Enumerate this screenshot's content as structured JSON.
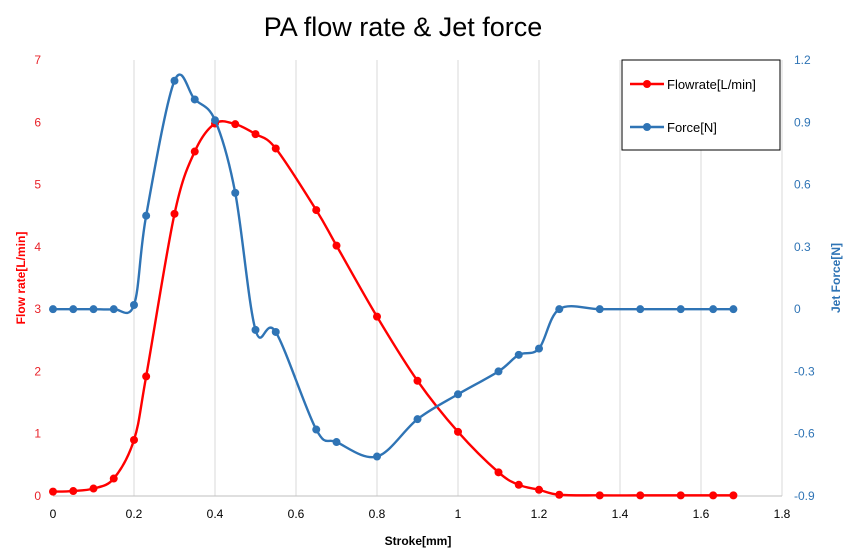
{
  "chart_data": {
    "type": "line",
    "title": "PA flow rate & Jet force",
    "xlabel": "Stroke[mm]",
    "ylabel": "Flow rate[L/min]",
    "y2label": "Jet Force[N]",
    "xlim": [
      0,
      1.8
    ],
    "ylim": [
      0,
      7
    ],
    "y2lim": [
      -0.9,
      1.2
    ],
    "x_ticks": [
      "0",
      "0.2",
      "0.4",
      "0.6",
      "0.8",
      "1",
      "1.2",
      "1.4",
      "1.6",
      "1.8"
    ],
    "y_ticks": [
      "0",
      "1",
      "2",
      "3",
      "4",
      "5",
      "6",
      "7"
    ],
    "y2_ticks": [
      "-0.9",
      "-0.6",
      "-0.3",
      "0",
      "0.3",
      "0.6",
      "0.9",
      "1.2"
    ],
    "grid": "vertical",
    "legend_position": "top-right",
    "series": [
      {
        "name": "Flowrate[L/min]",
        "axis": "left",
        "color": "#ff0000",
        "x": [
          0,
          0.05,
          0.1,
          0.15,
          0.2,
          0.23,
          0.3,
          0.35,
          0.4,
          0.45,
          0.5,
          0.55,
          0.65,
          0.7,
          0.8,
          0.9,
          1.0,
          1.1,
          1.15,
          1.2,
          1.25,
          1.35,
          1.45,
          1.55,
          1.63,
          1.68
        ],
        "values": [
          0.07,
          0.08,
          0.12,
          0.28,
          0.9,
          1.92,
          4.53,
          5.53,
          5.98,
          5.97,
          5.81,
          5.58,
          4.59,
          4.02,
          2.88,
          1.85,
          1.03,
          0.38,
          0.18,
          0.1,
          0.02,
          0.01,
          0.01,
          0.01,
          0.01,
          0.01
        ]
      },
      {
        "name": "Force[N]",
        "axis": "right",
        "color": "#2f74b5",
        "x": [
          0,
          0.05,
          0.1,
          0.15,
          0.2,
          0.23,
          0.3,
          0.35,
          0.4,
          0.45,
          0.5,
          0.55,
          0.65,
          0.7,
          0.8,
          0.9,
          1.0,
          1.1,
          1.15,
          1.2,
          1.25,
          1.35,
          1.45,
          1.55,
          1.63,
          1.68
        ],
        "values": [
          0,
          0,
          0,
          0,
          0.02,
          0.45,
          1.1,
          1.01,
          0.91,
          0.56,
          -0.1,
          -0.11,
          -0.58,
          -0.64,
          -0.71,
          -0.53,
          -0.41,
          -0.3,
          -0.22,
          -0.19,
          0,
          0,
          0,
          0,
          0,
          0
        ]
      }
    ]
  }
}
